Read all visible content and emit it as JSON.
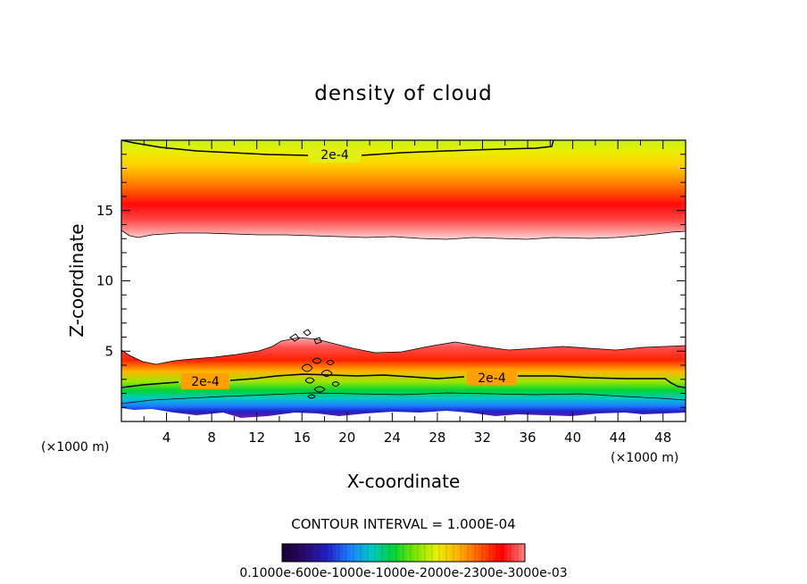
{
  "chart_data": {
    "type": "contour",
    "title": "density of cloud",
    "xlabel": "X-coordinate",
    "ylabel": "Z-coordinate",
    "x_unit_label": "(×1000 m)",
    "z_unit_label": "(×1000 m)",
    "xlim": [
      0,
      50
    ],
    "ylim": [
      0,
      20
    ],
    "x_ticks": [
      4,
      8,
      12,
      16,
      20,
      24,
      28,
      32,
      36,
      40,
      44,
      48
    ],
    "y_ticks": [
      5,
      10,
      15
    ],
    "contour_labels": [
      "2e-4",
      "2e-4",
      "2e-4"
    ],
    "contour_interval_text": "CONTOUR INTERVAL = 1.000E-04",
    "colorbar_labels_text": "0.1000e-600e-1000e-1000e-2000e-2300e-3000e-03",
    "colorbar_colors": [
      "#1a0033",
      "#2b0a6e",
      "#2020c8",
      "#1e7cff",
      "#00c8c8",
      "#00d23c",
      "#78e600",
      "#e6f000",
      "#ffb400",
      "#ff5a00",
      "#ff0000",
      "#ff7878"
    ],
    "upper_band": {
      "bottom_z": 13.2,
      "peak_z": 15.2,
      "top_z": 20,
      "contour_2e4_z": 18.7
    },
    "lower_band": {
      "bottom_z": 0.8,
      "peak_z": 4.2,
      "top_z": 5.2,
      "contour_2e4_z": 3.0
    }
  }
}
